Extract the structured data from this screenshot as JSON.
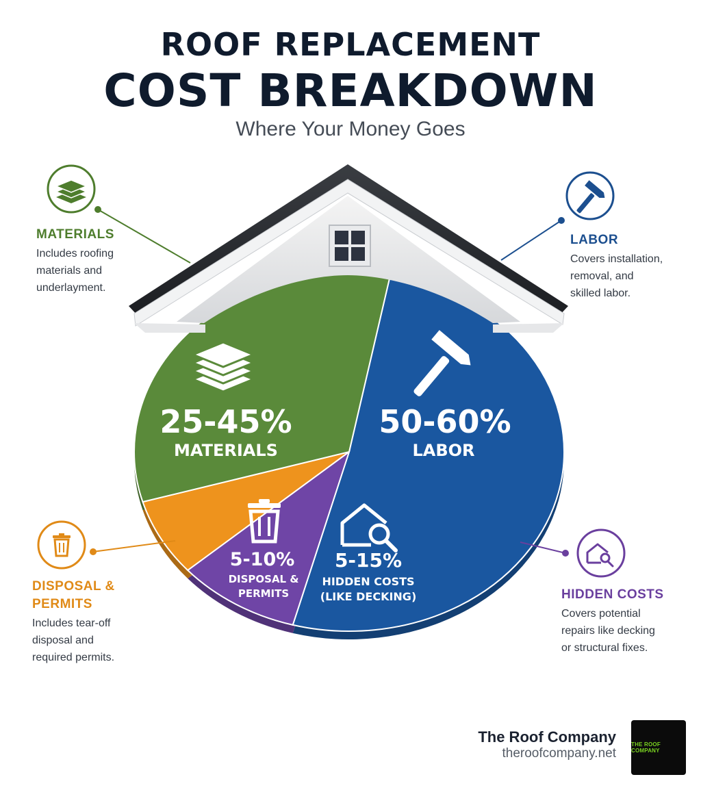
{
  "header": {
    "title_line1": "ROOF REPLACEMENT",
    "title_line2": "COST BREAKDOWN",
    "subtitle": "Where Your Money Goes"
  },
  "chart_data": {
    "type": "pie",
    "title": "ROOF REPLACEMENT COST BREAKDOWN",
    "subtitle": "Where Your Money Goes",
    "slices": [
      {
        "name": "LABOR",
        "range": "50-60%",
        "low": 50,
        "high": 60,
        "color": "#1a57a0",
        "icon": "hammer-icon",
        "callout_title": "LABOR",
        "callout_desc": [
          "Covers installation,",
          "removal, and",
          "skilled labor."
        ]
      },
      {
        "name": "HIDDEN COSTS (LIKE DECKING)",
        "label_lines": [
          "HIDDEN COSTS",
          "(LIKE DECKING)"
        ],
        "range": "5-15%",
        "low": 5,
        "high": 15,
        "color": "#6f45a6",
        "icon": "house-search-icon",
        "callout_title": "HIDDEN COSTS",
        "callout_desc": [
          "Covers potential",
          "repairs like decking",
          "or structural fixes."
        ]
      },
      {
        "name": "DISPOSAL & PERMITS",
        "label_lines": [
          "DISPOSAL &",
          "PERMITS"
        ],
        "range": "5-10%",
        "low": 5,
        "high": 10,
        "color": "#ee931d",
        "icon": "trash-can-icon",
        "callout_title": "DISPOSAL & PERMITS",
        "callout_title_lines": [
          "DISPOSAL &",
          "PERMITS"
        ],
        "callout_desc": [
          "Includes tear-off",
          "disposal and",
          "required permits."
        ]
      },
      {
        "name": "MATERIALS",
        "range": "25-45%",
        "low": 25,
        "high": 45,
        "color": "#5a8a3a",
        "icon": "layers-stack-icon",
        "callout_title": "MATERIALS",
        "callout_desc": [
          "Includes roofing",
          "materials and",
          "underlayment."
        ]
      }
    ],
    "legend": "none"
  },
  "callouts": {
    "materials": {
      "title": "MATERIALS",
      "desc": [
        "Includes roofing",
        "materials and",
        "underlayment."
      ],
      "color": "#4e7d2d"
    },
    "labor": {
      "title": "LABOR",
      "desc": [
        "Covers installation,",
        "removal, and",
        "skilled labor."
      ],
      "color": "#1c4f8f"
    },
    "disposal": {
      "title_lines": [
        "DISPOSAL &",
        "PERMITS"
      ],
      "desc": [
        "Includes tear-off",
        "disposal and",
        "required permits."
      ],
      "color": "#e08a17"
    },
    "hidden": {
      "title": "HIDDEN COSTS",
      "desc": [
        "Covers potential",
        "repairs like decking",
        "or structural fixes."
      ],
      "color": "#6a3f9e"
    }
  },
  "brand": {
    "name": "The Roof Company",
    "url": "theroofcompany.net",
    "logo_text": "THE ROOF COMPANY"
  }
}
